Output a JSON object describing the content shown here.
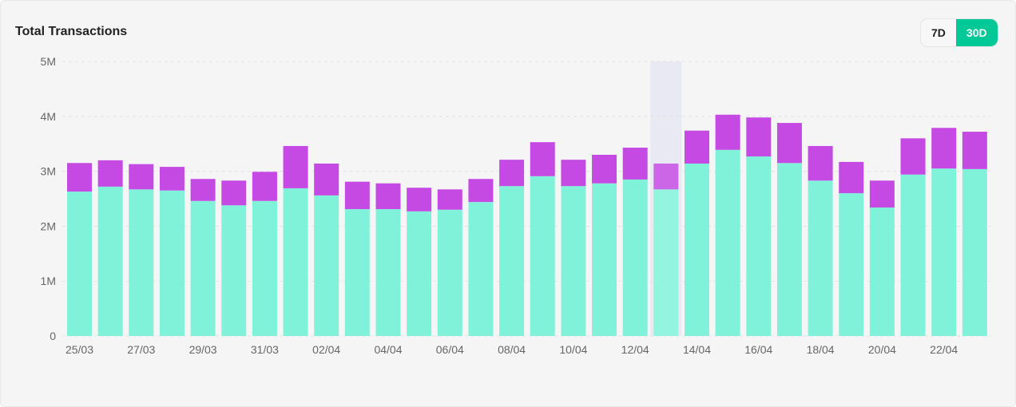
{
  "title": "Total Transactions",
  "range_options": [
    {
      "label": "7D",
      "active": false
    },
    {
      "label": "30D",
      "active": true
    }
  ],
  "colors": {
    "lower": "#80f2da",
    "upper": "#c54ae3",
    "accent": "#00c896",
    "highlight": "#e8e9f2"
  },
  "chart_data": {
    "type": "bar",
    "stacked": true,
    "title": "Total Transactions",
    "xlabel": "",
    "ylabel": "",
    "ylim": [
      0,
      5000000
    ],
    "yticks": [
      {
        "v": 0,
        "label": "0"
      },
      {
        "v": 1000000,
        "label": "1M"
      },
      {
        "v": 2000000,
        "label": "2M"
      },
      {
        "v": 3000000,
        "label": "3M"
      },
      {
        "v": 4000000,
        "label": "4M"
      },
      {
        "v": 5000000,
        "label": "5M"
      }
    ],
    "categories": [
      "25/03",
      "26/03",
      "27/03",
      "28/03",
      "29/03",
      "30/03",
      "31/03",
      "01/04",
      "02/04",
      "03/04",
      "04/04",
      "05/04",
      "06/04",
      "07/04",
      "08/04",
      "09/04",
      "10/04",
      "11/04",
      "12/04",
      "13/04",
      "14/04",
      "15/04",
      "16/04",
      "17/04",
      "18/04",
      "19/04",
      "20/04",
      "21/04",
      "22/04",
      "23/04"
    ],
    "xtick_labels_shown": [
      "25/03",
      "27/03",
      "29/03",
      "31/03",
      "02/04",
      "04/04",
      "06/04",
      "08/04",
      "10/04",
      "12/04",
      "14/04",
      "16/04",
      "18/04",
      "20/04",
      "22/04"
    ],
    "highlighted_category": "13/04",
    "series": [
      {
        "name": "lower",
        "values": [
          2630000,
          2720000,
          2670000,
          2650000,
          2460000,
          2380000,
          2460000,
          2690000,
          2560000,
          2310000,
          2310000,
          2270000,
          2300000,
          2440000,
          2730000,
          2910000,
          2730000,
          2780000,
          2850000,
          2670000,
          3140000,
          3390000,
          3270000,
          3150000,
          2830000,
          2600000,
          2340000,
          2940000,
          3050000,
          3040000
        ]
      },
      {
        "name": "upper",
        "values": [
          520000,
          480000,
          460000,
          430000,
          400000,
          450000,
          530000,
          770000,
          580000,
          500000,
          470000,
          430000,
          370000,
          420000,
          480000,
          620000,
          480000,
          520000,
          580000,
          470000,
          600000,
          640000,
          710000,
          730000,
          630000,
          570000,
          490000,
          660000,
          740000,
          680000
        ]
      }
    ],
    "grid": true,
    "legend": "none"
  }
}
